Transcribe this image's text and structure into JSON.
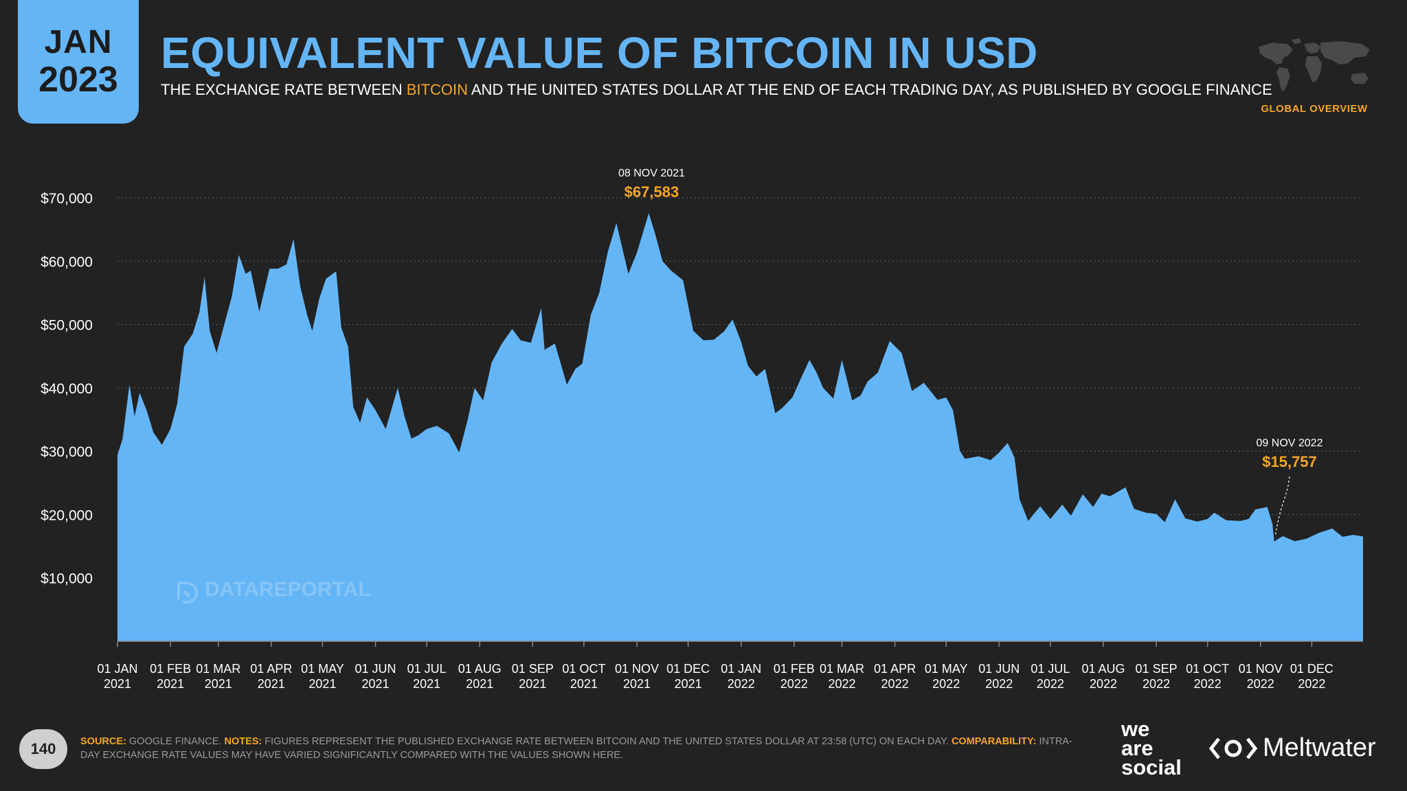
{
  "badge": {
    "month": "JAN",
    "year": "2023"
  },
  "header": {
    "title": "EQUIVALENT VALUE OF BITCOIN IN USD",
    "subtitle_pre": "THE EXCHANGE RATE BETWEEN ",
    "subtitle_hl": "BITCOIN",
    "subtitle_post": " AND THE UNITED STATES DOLLAR AT THE END OF EACH TRADING DAY, AS PUBLISHED BY GOOGLE FINANCE",
    "section": "GLOBAL OVERVIEW"
  },
  "colors": {
    "accent_blue": "#64b5f6",
    "accent_orange": "#f5a623",
    "background": "#222222"
  },
  "chart_data": {
    "type": "area",
    "title": "EQUIVALENT VALUE OF BITCOIN IN USD",
    "xlabel": "",
    "ylabel": "",
    "ylim": [
      0,
      70000
    ],
    "grid": true,
    "y_ticks": [
      {
        "value": 10000,
        "label": "$10,000"
      },
      {
        "value": 20000,
        "label": "$20,000"
      },
      {
        "value": 30000,
        "label": "$30,000"
      },
      {
        "value": 40000,
        "label": "$40,000"
      },
      {
        "value": 50000,
        "label": "$50,000"
      },
      {
        "value": 60000,
        "label": "$60,000"
      },
      {
        "value": 70000,
        "label": "$70,000"
      }
    ],
    "x_ticks": [
      {
        "date": "2021-01-01",
        "line1": "01 JAN",
        "line2": "2021"
      },
      {
        "date": "2021-02-01",
        "line1": "01 FEB",
        "line2": "2021"
      },
      {
        "date": "2021-03-01",
        "line1": "01 MAR",
        "line2": "2021"
      },
      {
        "date": "2021-04-01",
        "line1": "01 APR",
        "line2": "2021"
      },
      {
        "date": "2021-05-01",
        "line1": "01 MAY",
        "line2": "2021"
      },
      {
        "date": "2021-06-01",
        "line1": "01 JUN",
        "line2": "2021"
      },
      {
        "date": "2021-07-01",
        "line1": "01 JUL",
        "line2": "2021"
      },
      {
        "date": "2021-08-01",
        "line1": "01 AUG",
        "line2": "2021"
      },
      {
        "date": "2021-09-01",
        "line1": "01 SEP",
        "line2": "2021"
      },
      {
        "date": "2021-10-01",
        "line1": "01 OCT",
        "line2": "2021"
      },
      {
        "date": "2021-11-01",
        "line1": "01 NOV",
        "line2": "2021"
      },
      {
        "date": "2021-12-01",
        "line1": "01 DEC",
        "line2": "2021"
      },
      {
        "date": "2022-01-01",
        "line1": "01 JAN",
        "line2": "2022"
      },
      {
        "date": "2022-02-01",
        "line1": "01 FEB",
        "line2": "2022"
      },
      {
        "date": "2022-03-01",
        "line1": "01 MAR",
        "line2": "2022"
      },
      {
        "date": "2022-04-01",
        "line1": "01 APR",
        "line2": "2022"
      },
      {
        "date": "2022-05-01",
        "line1": "01 MAY",
        "line2": "2022"
      },
      {
        "date": "2022-06-01",
        "line1": "01 JUN",
        "line2": "2022"
      },
      {
        "date": "2022-07-01",
        "line1": "01 JUL",
        "line2": "2022"
      },
      {
        "date": "2022-08-01",
        "line1": "01 AUG",
        "line2": "2022"
      },
      {
        "date": "2022-09-01",
        "line1": "01 SEP",
        "line2": "2022"
      },
      {
        "date": "2022-10-01",
        "line1": "01 OCT",
        "line2": "2022"
      },
      {
        "date": "2022-11-01",
        "line1": "01 NOV",
        "line2": "2022"
      },
      {
        "date": "2022-12-01",
        "line1": "01 DEC",
        "line2": "2022"
      }
    ],
    "series": [
      {
        "points": [
          [
            "2021-01-01",
            29400
          ],
          [
            "2021-01-04",
            32000
          ],
          [
            "2021-01-08",
            40500
          ],
          [
            "2021-01-11",
            35500
          ],
          [
            "2021-01-14",
            39200
          ],
          [
            "2021-01-18",
            36500
          ],
          [
            "2021-01-22",
            33000
          ],
          [
            "2021-01-27",
            31000
          ],
          [
            "2021-02-01",
            33500
          ],
          [
            "2021-02-05",
            37500
          ],
          [
            "2021-02-09",
            46500
          ],
          [
            "2021-02-14",
            48500
          ],
          [
            "2021-02-18",
            52000
          ],
          [
            "2021-02-21",
            57500
          ],
          [
            "2021-02-24",
            49000
          ],
          [
            "2021-02-28",
            45500
          ],
          [
            "2021-03-04",
            49500
          ],
          [
            "2021-03-09",
            54500
          ],
          [
            "2021-03-13",
            61000
          ],
          [
            "2021-03-17",
            58000
          ],
          [
            "2021-03-20",
            58500
          ],
          [
            "2021-03-25",
            52000
          ],
          [
            "2021-03-31",
            58800
          ],
          [
            "2021-04-05",
            58800
          ],
          [
            "2021-04-10",
            59500
          ],
          [
            "2021-04-14",
            63500
          ],
          [
            "2021-04-18",
            56000
          ],
          [
            "2021-04-22",
            51500
          ],
          [
            "2021-04-25",
            49000
          ],
          [
            "2021-04-29",
            54000
          ],
          [
            "2021-05-03",
            57200
          ],
          [
            "2021-05-09",
            58400
          ],
          [
            "2021-05-12",
            49500
          ],
          [
            "2021-05-16",
            46500
          ],
          [
            "2021-05-19",
            37000
          ],
          [
            "2021-05-23",
            34500
          ],
          [
            "2021-05-27",
            38500
          ],
          [
            "2021-06-01",
            36500
          ],
          [
            "2021-06-07",
            33500
          ],
          [
            "2021-06-14",
            40000
          ],
          [
            "2021-06-18",
            35500
          ],
          [
            "2021-06-22",
            32000
          ],
          [
            "2021-06-26",
            32500
          ],
          [
            "2021-07-01",
            33500
          ],
          [
            "2021-07-07",
            34000
          ],
          [
            "2021-07-14",
            32800
          ],
          [
            "2021-07-20",
            29800
          ],
          [
            "2021-07-25",
            35000
          ],
          [
            "2021-07-29",
            40000
          ],
          [
            "2021-08-03",
            38000
          ],
          [
            "2021-08-08",
            44000
          ],
          [
            "2021-08-14",
            47000
          ],
          [
            "2021-08-20",
            49300
          ],
          [
            "2021-08-25",
            47500
          ],
          [
            "2021-08-31",
            47100
          ],
          [
            "2021-09-06",
            52600
          ],
          [
            "2021-09-08",
            46000
          ],
          [
            "2021-09-14",
            47000
          ],
          [
            "2021-09-21",
            40500
          ],
          [
            "2021-09-26",
            43000
          ],
          [
            "2021-09-30",
            43800
          ],
          [
            "2021-10-05",
            51500
          ],
          [
            "2021-10-10",
            55000
          ],
          [
            "2021-10-15",
            61500
          ],
          [
            "2021-10-20",
            66000
          ],
          [
            "2021-10-27",
            58000
          ],
          [
            "2021-11-01",
            61300
          ],
          [
            "2021-11-08",
            67583
          ],
          [
            "2021-11-12",
            64000
          ],
          [
            "2021-11-16",
            60000
          ],
          [
            "2021-11-21",
            58500
          ],
          [
            "2021-11-28",
            57000
          ],
          [
            "2021-12-04",
            49000
          ],
          [
            "2021-12-10",
            47500
          ],
          [
            "2021-12-16",
            47600
          ],
          [
            "2021-12-22",
            48900
          ],
          [
            "2021-12-27",
            50800
          ],
          [
            "2022-01-01",
            47300
          ],
          [
            "2022-01-05",
            43500
          ],
          [
            "2022-01-10",
            41800
          ],
          [
            "2022-01-15",
            43000
          ],
          [
            "2022-01-21",
            36000
          ],
          [
            "2022-01-25",
            36800
          ],
          [
            "2022-01-31",
            38500
          ],
          [
            "2022-02-05",
            41500
          ],
          [
            "2022-02-10",
            44400
          ],
          [
            "2022-02-14",
            42500
          ],
          [
            "2022-02-18",
            40000
          ],
          [
            "2022-02-24",
            38300
          ],
          [
            "2022-03-01",
            44400
          ],
          [
            "2022-03-07",
            38000
          ],
          [
            "2022-03-12",
            38800
          ],
          [
            "2022-03-16",
            41000
          ],
          [
            "2022-03-22",
            42400
          ],
          [
            "2022-03-29",
            47400
          ],
          [
            "2022-04-05",
            45500
          ],
          [
            "2022-04-11",
            39500
          ],
          [
            "2022-04-18",
            40800
          ],
          [
            "2022-04-26",
            38100
          ],
          [
            "2022-05-01",
            38500
          ],
          [
            "2022-05-05",
            36500
          ],
          [
            "2022-05-09",
            30100
          ],
          [
            "2022-05-12",
            28800
          ],
          [
            "2022-05-20",
            29200
          ],
          [
            "2022-05-27",
            28600
          ],
          [
            "2022-06-01",
            29800
          ],
          [
            "2022-06-06",
            31300
          ],
          [
            "2022-06-10",
            29000
          ],
          [
            "2022-06-13",
            22400
          ],
          [
            "2022-06-18",
            19000
          ],
          [
            "2022-06-25",
            21300
          ],
          [
            "2022-07-01",
            19300
          ],
          [
            "2022-07-08",
            21600
          ],
          [
            "2022-07-13",
            19800
          ],
          [
            "2022-07-20",
            23200
          ],
          [
            "2022-07-26",
            21200
          ],
          [
            "2022-07-31",
            23300
          ],
          [
            "2022-08-05",
            22900
          ],
          [
            "2022-08-14",
            24300
          ],
          [
            "2022-08-19",
            20900
          ],
          [
            "2022-08-26",
            20300
          ],
          [
            "2022-09-01",
            20100
          ],
          [
            "2022-09-06",
            18800
          ],
          [
            "2022-09-12",
            22400
          ],
          [
            "2022-09-18",
            19400
          ],
          [
            "2022-09-25",
            18900
          ],
          [
            "2022-10-01",
            19300
          ],
          [
            "2022-10-05",
            20300
          ],
          [
            "2022-10-12",
            19100
          ],
          [
            "2022-10-20",
            19000
          ],
          [
            "2022-10-25",
            19300
          ],
          [
            "2022-10-29",
            20800
          ],
          [
            "2022-11-05",
            21200
          ],
          [
            "2022-11-08",
            18500
          ],
          [
            "2022-11-09",
            15757
          ],
          [
            "2022-11-14",
            16600
          ],
          [
            "2022-11-21",
            15800
          ],
          [
            "2022-11-28",
            16200
          ],
          [
            "2022-12-05",
            17100
          ],
          [
            "2022-12-13",
            17800
          ],
          [
            "2022-12-19",
            16500
          ],
          [
            "2022-12-25",
            16800
          ],
          [
            "2022-12-31",
            16550
          ]
        ]
      }
    ],
    "annotations": [
      {
        "date": "2021-11-08",
        "value": 67583,
        "label_date": "08 NOV 2021",
        "label_value": "$67,583"
      },
      {
        "date": "2022-11-09",
        "value": 15757,
        "label_date": "09 NOV 2022",
        "label_value": "$15,757"
      }
    ],
    "watermark": "DATAREPORTAL"
  },
  "footer": {
    "page_number": "140",
    "source_label": "SOURCE:",
    "source_text": " GOOGLE FINANCE. ",
    "notes_label": "NOTES:",
    "notes_text": " FIGURES REPRESENT THE PUBLISHED EXCHANGE RATE BETWEEN BITCOIN AND THE UNITED STATES DOLLAR AT 23:58 (UTC) ON EACH DAY. ",
    "comparability_label": "COMPARABILITY:",
    "comparability_text": " INTRA-DAY EXCHANGE RATE VALUES MAY HAVE VARIED SIGNIFICANTLY COMPARED WITH THE VALUES SHOWN HERE.",
    "logo_we": "we",
    "logo_are": "are",
    "logo_social": "social",
    "logo_meltwater": "Meltwater"
  }
}
